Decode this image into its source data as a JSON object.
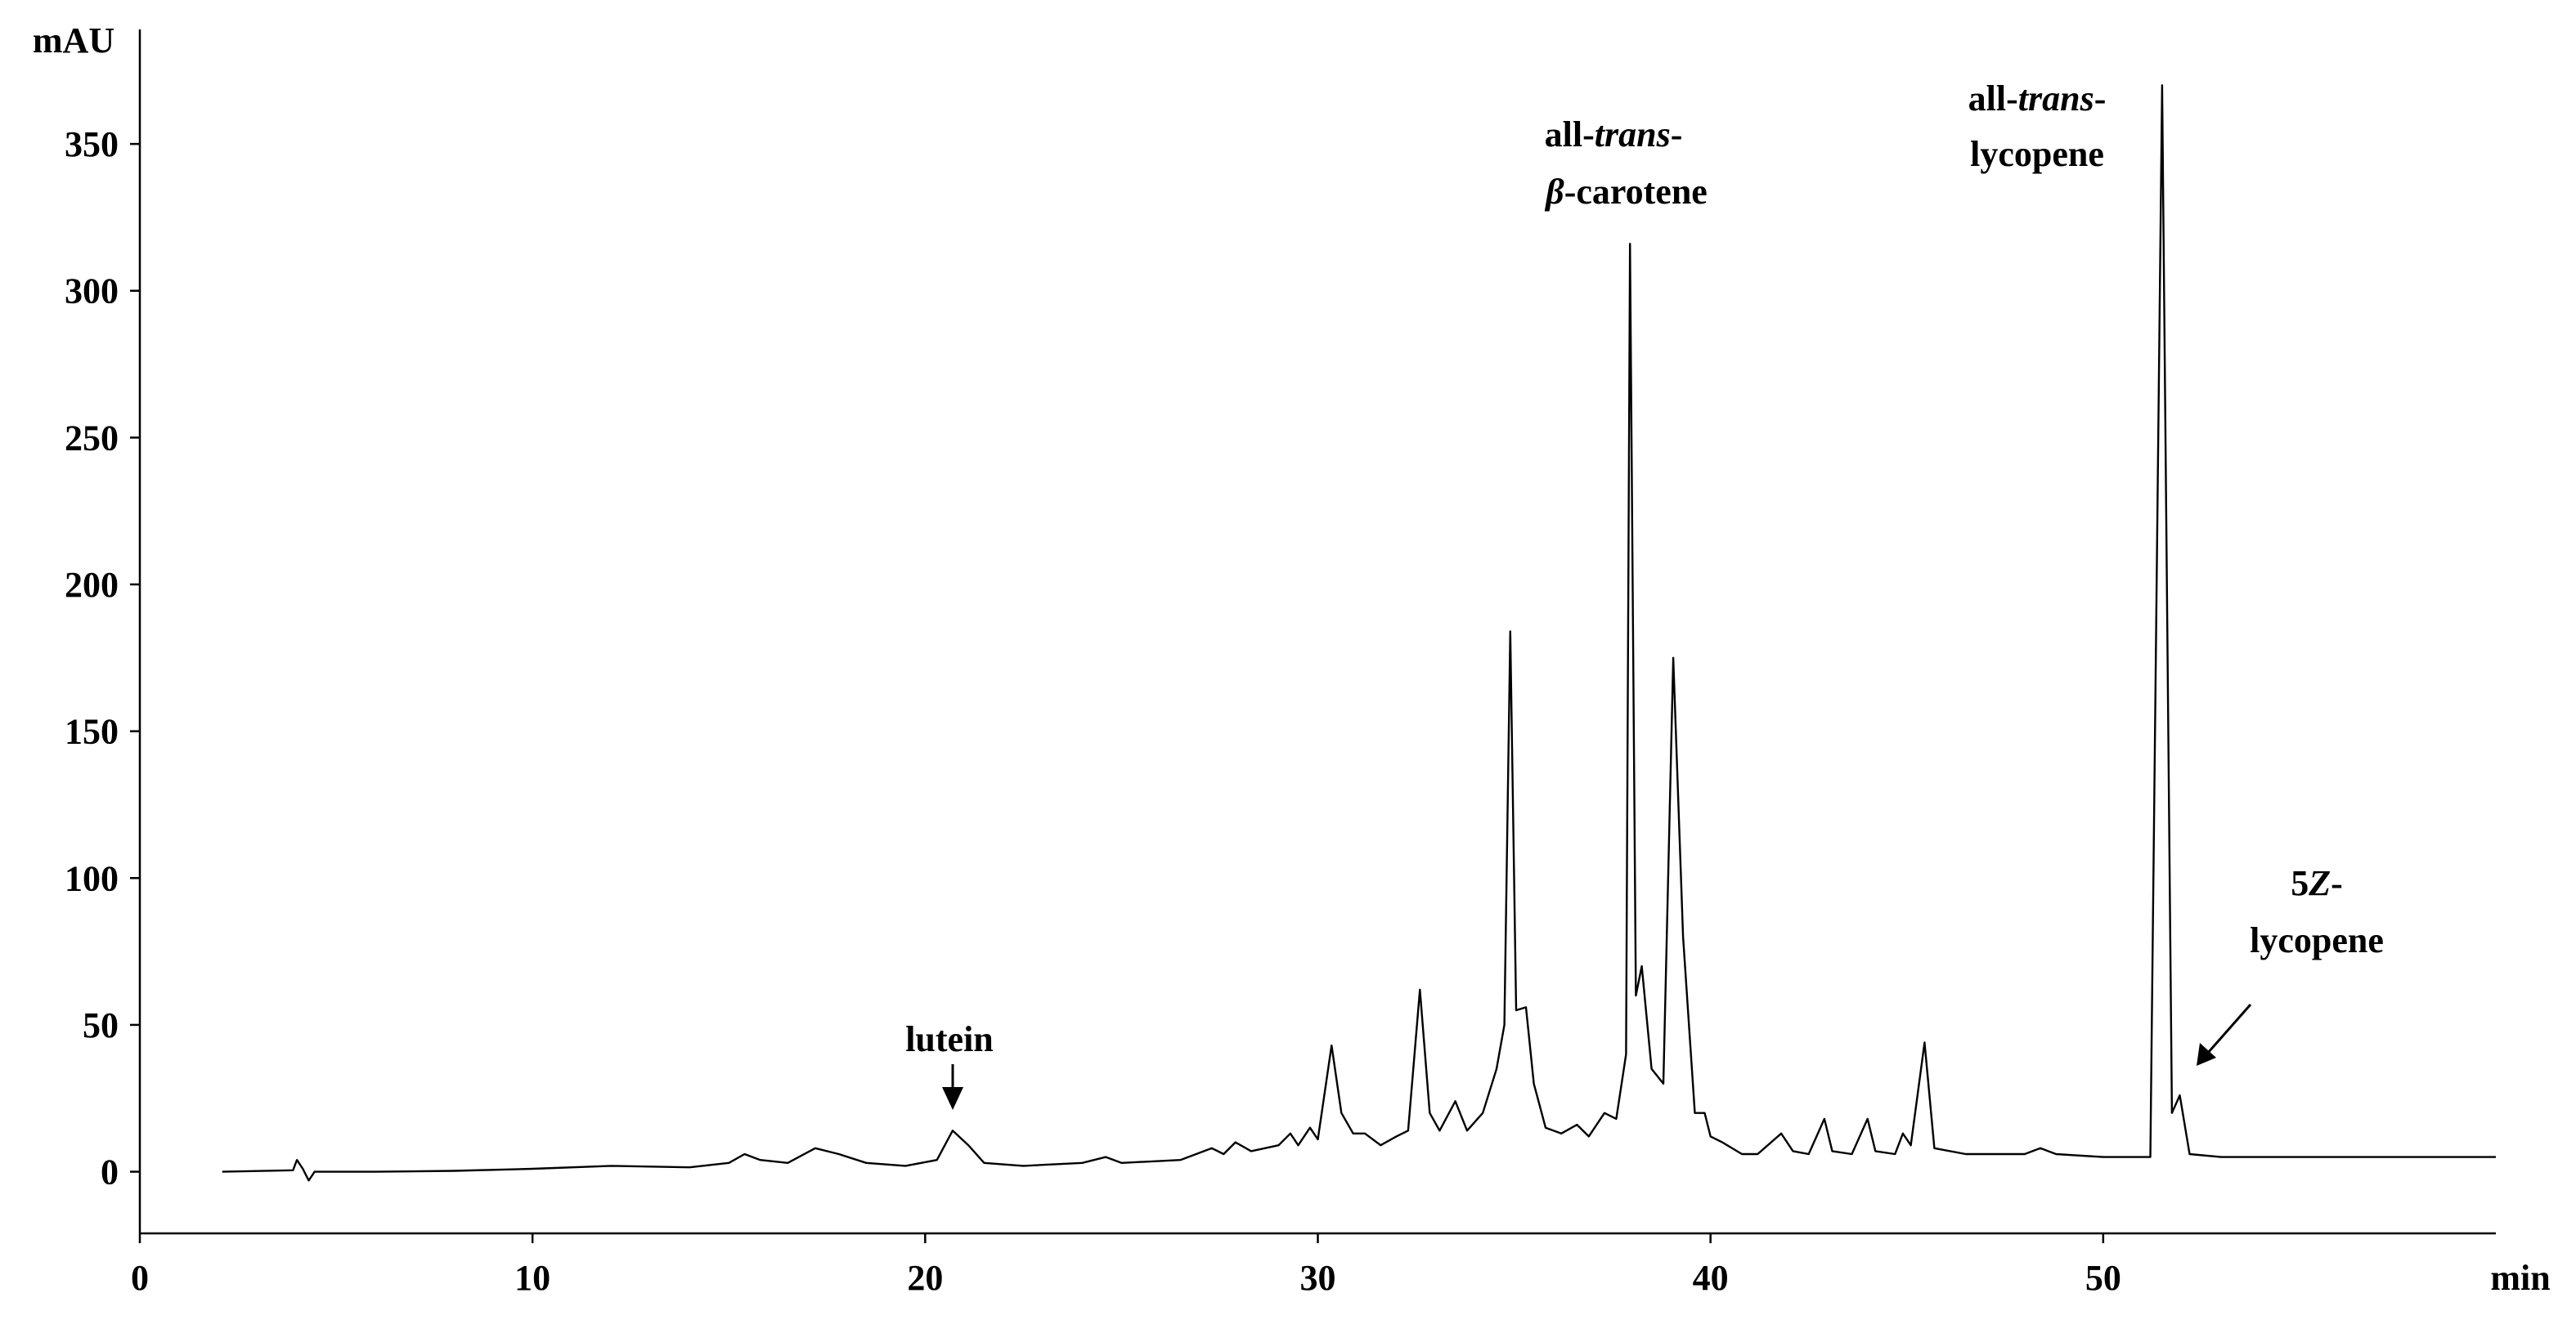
{
  "chart_data": {
    "type": "line",
    "y_label": "mAU",
    "x_label": "min",
    "color": "#000000",
    "xlim": [
      0,
      60
    ],
    "ylim": [
      -21,
      389
    ],
    "xticks": [
      0,
      10,
      20,
      30,
      40,
      50
    ],
    "yticks": [
      0,
      50,
      100,
      150,
      200,
      250,
      300,
      350
    ],
    "x": [
      2.1,
      3.9,
      4.0,
      4.15,
      4.3,
      4.45,
      6,
      8,
      10,
      12,
      14,
      15,
      15.4,
      15.8,
      16.5,
      17.2,
      17.8,
      18.5,
      19.5,
      20.3,
      20.7,
      21.1,
      21.5,
      22.5,
      24,
      24.6,
      25,
      26.5,
      27.3,
      27.6,
      27.9,
      28.3,
      29,
      29.3,
      29.5,
      29.8,
      30.0,
      30.35,
      30.6,
      30.9,
      31.2,
      31.6,
      32.0,
      32.3,
      32.6,
      32.85,
      33.1,
      33.5,
      33.8,
      34.2,
      34.55,
      34.75,
      34.9,
      35.05,
      35.3,
      35.5,
      35.8,
      36.2,
      36.6,
      36.9,
      37.3,
      37.6,
      37.85,
      37.95,
      38.1,
      38.25,
      38.5,
      38.8,
      39.05,
      39.3,
      39.6,
      39.85,
      40.0,
      40.3,
      40.8,
      41.2,
      41.8,
      42.1,
      42.5,
      42.9,
      43.1,
      43.6,
      44.0,
      44.2,
      44.7,
      44.9,
      45.1,
      45.45,
      45.7,
      46.5,
      48,
      48.4,
      48.8,
      50,
      51.2,
      51.5,
      51.75,
      51.95,
      52.2,
      53,
      55,
      58,
      60
    ],
    "values": [
      0,
      0.5,
      4,
      1,
      -3,
      0,
      0,
      0.3,
      1,
      2,
      1.5,
      3,
      6,
      4,
      3,
      8,
      6,
      3,
      2,
      4,
      14,
      9,
      3,
      2,
      3,
      5,
      3,
      4,
      8,
      6,
      10,
      7,
      9,
      13,
      9,
      15,
      11,
      43,
      20,
      13,
      13,
      9,
      12,
      14,
      62,
      20,
      14,
      24,
      14,
      20,
      35,
      50,
      184,
      55,
      56,
      30,
      15,
      13,
      16,
      12,
      20,
      18,
      40,
      316,
      60,
      70,
      35,
      30,
      175,
      80,
      20,
      20,
      12,
      10,
      6,
      6,
      13,
      7,
      6,
      18,
      7,
      6,
      18,
      7,
      6,
      13,
      9,
      44,
      8,
      6,
      6,
      8,
      6,
      5,
      5,
      370,
      20,
      26,
      6,
      5,
      5,
      5,
      5
    ],
    "annotations": [
      {
        "lines": [
          [
            "lutein"
          ]
        ]
      },
      {
        "lines": [
          [
            "all-",
            {
              "text": "trans",
              "italic": true
            },
            "-"
          ],
          [
            {
              "text": "β",
              "italic": true
            },
            "-carotene"
          ]
        ]
      },
      {
        "lines": [
          [
            "all-",
            {
              "text": "trans",
              "italic": true
            },
            "-"
          ],
          [
            "lycopene"
          ]
        ]
      },
      {
        "lines": [
          [
            "5",
            {
              "text": "Z",
              "italic": true
            },
            "-"
          ],
          [
            "lycopene"
          ]
        ]
      }
    ]
  }
}
